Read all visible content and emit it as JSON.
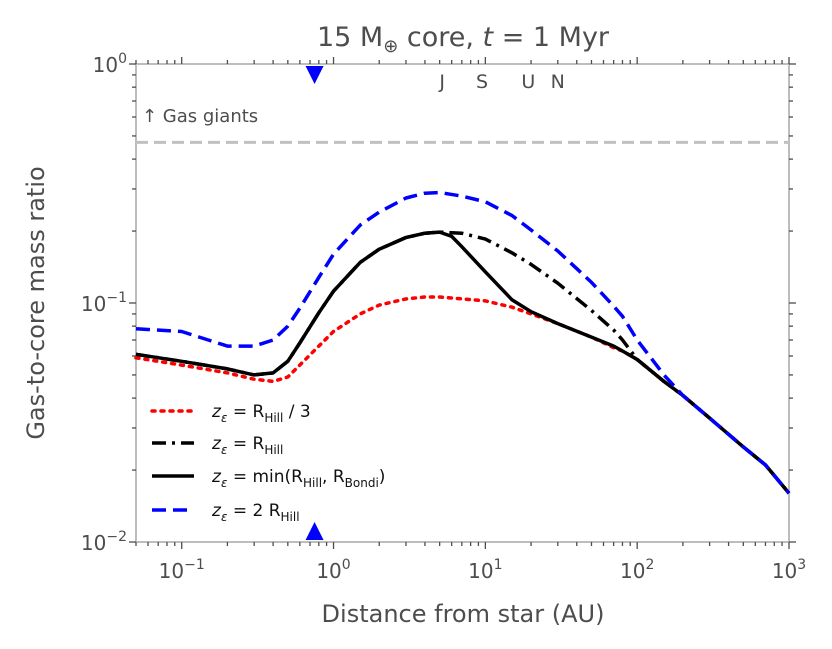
{
  "chart_data": {
    "type": "line",
    "title": {
      "prefix": "15 M",
      "sub": "⊕",
      "mid": " core, ",
      "var": "t",
      "suffix": " = 1 Myr"
    },
    "xlabel": "Distance from star (AU)",
    "ylabel": "Gas-to-core mass ratio",
    "x_scale": "log",
    "y_scale": "log",
    "xlim": [
      0.05,
      1000
    ],
    "ylim": [
      0.01,
      1
    ],
    "x_ticks": [
      {
        "value": 0.1,
        "base": "10",
        "exp": "−1"
      },
      {
        "value": 1,
        "base": "10",
        "exp": "0"
      },
      {
        "value": 10,
        "base": "10",
        "exp": "1"
      },
      {
        "value": 100,
        "base": "10",
        "exp": "2"
      },
      {
        "value": 1000,
        "base": "10",
        "exp": "3"
      }
    ],
    "y_ticks": [
      {
        "value": 0.01,
        "base": "10",
        "exp": "−2"
      },
      {
        "value": 0.1,
        "base": "10",
        "exp": "−1"
      },
      {
        "value": 1,
        "base": "10",
        "exp": "0"
      }
    ],
    "planets": [
      {
        "label": "J",
        "x": 5.2
      },
      {
        "label": "S",
        "x": 9.5
      },
      {
        "label": "U",
        "x": 19.2
      },
      {
        "label": "N",
        "x": 30
      }
    ],
    "markers": [
      {
        "x": 0.75,
        "color": "#0000ff"
      }
    ],
    "gas_giant_line": {
      "y": 0.47,
      "label": "↑ Gas giants",
      "color": "#c0c0c0"
    },
    "series": [
      {
        "key": "third",
        "legend": {
          "prefix": "z",
          "sub1": "ε",
          "mid": " = R",
          "sub2": "Hill",
          "suffix": " / 3"
        },
        "color": "#ff0000",
        "style": "dotted",
        "x": [
          0.05,
          0.1,
          0.2,
          0.3,
          0.4,
          0.5,
          0.6,
          0.8,
          1,
          1.5,
          2,
          3,
          4,
          5,
          7,
          10,
          15,
          20,
          30,
          50,
          70,
          80,
          100,
          150,
          200,
          300,
          500,
          700,
          1000
        ],
        "y": [
          0.059,
          0.055,
          0.051,
          0.048,
          0.047,
          0.049,
          0.055,
          0.066,
          0.076,
          0.09,
          0.098,
          0.104,
          0.106,
          0.106,
          0.104,
          0.102,
          0.096,
          0.09,
          0.082,
          0.072,
          0.065,
          0.063,
          0.058,
          0.047,
          0.041,
          0.033,
          0.025,
          0.021,
          0.016
        ]
      },
      {
        "key": "hill",
        "legend": {
          "prefix": "z",
          "sub1": "ε",
          "mid": " = R",
          "sub2": "Hill",
          "suffix": ""
        },
        "color": "#000000",
        "style": "dashdot",
        "x": [
          0.05,
          0.1,
          0.2,
          0.3,
          0.4,
          0.5,
          0.6,
          0.8,
          1,
          1.5,
          2,
          3,
          4,
          5,
          7,
          10,
          15,
          20,
          30,
          50,
          70,
          80,
          100,
          150,
          200,
          300,
          500,
          700,
          1000
        ],
        "y": [
          0.061,
          0.057,
          0.053,
          0.05,
          0.051,
          0.057,
          0.068,
          0.091,
          0.112,
          0.148,
          0.168,
          0.188,
          0.196,
          0.198,
          0.196,
          0.185,
          0.162,
          0.145,
          0.121,
          0.093,
          0.077,
          0.07,
          0.058,
          0.047,
          0.041,
          0.033,
          0.025,
          0.021,
          0.016
        ]
      },
      {
        "key": "min",
        "legend": {
          "prefix": "z",
          "sub1": "ε",
          "mid": " = min(R",
          "sub2": "Hill",
          "mid2": ", R",
          "sub3": "Bondi",
          "suffix": ")"
        },
        "color": "#000000",
        "style": "solid",
        "x": [
          0.05,
          0.1,
          0.2,
          0.3,
          0.4,
          0.5,
          0.6,
          0.8,
          1,
          1.5,
          2,
          3,
          4,
          5,
          6,
          7,
          10,
          15,
          20,
          30,
          50,
          70,
          80,
          100,
          150,
          200,
          300,
          500,
          700,
          1000
        ],
        "y": [
          0.061,
          0.057,
          0.053,
          0.05,
          0.051,
          0.057,
          0.068,
          0.091,
          0.112,
          0.148,
          0.168,
          0.188,
          0.196,
          0.198,
          0.19,
          0.172,
          0.135,
          0.103,
          0.092,
          0.082,
          0.072,
          0.066,
          0.063,
          0.058,
          0.047,
          0.041,
          0.033,
          0.025,
          0.021,
          0.016
        ]
      },
      {
        "key": "double",
        "legend": {
          "prefix": "z",
          "sub1": "ε",
          "mid": " = 2 R",
          "sub2": "Hill",
          "suffix": ""
        },
        "color": "#0000ff",
        "style": "dashed",
        "x": [
          0.05,
          0.1,
          0.2,
          0.3,
          0.4,
          0.5,
          0.6,
          0.8,
          1,
          1.5,
          2,
          3,
          4,
          5,
          7,
          10,
          15,
          20,
          30,
          50,
          70,
          80,
          100,
          150,
          200,
          300,
          500,
          700,
          1000
        ],
        "y": [
          0.078,
          0.076,
          0.066,
          0.066,
          0.07,
          0.08,
          0.095,
          0.128,
          0.16,
          0.212,
          0.24,
          0.275,
          0.288,
          0.29,
          0.28,
          0.265,
          0.232,
          0.202,
          0.165,
          0.122,
          0.097,
          0.088,
          0.07,
          0.05,
          0.041,
          0.033,
          0.025,
          0.021,
          0.016
        ]
      }
    ],
    "legend_position": "lower-left",
    "grid": false
  }
}
